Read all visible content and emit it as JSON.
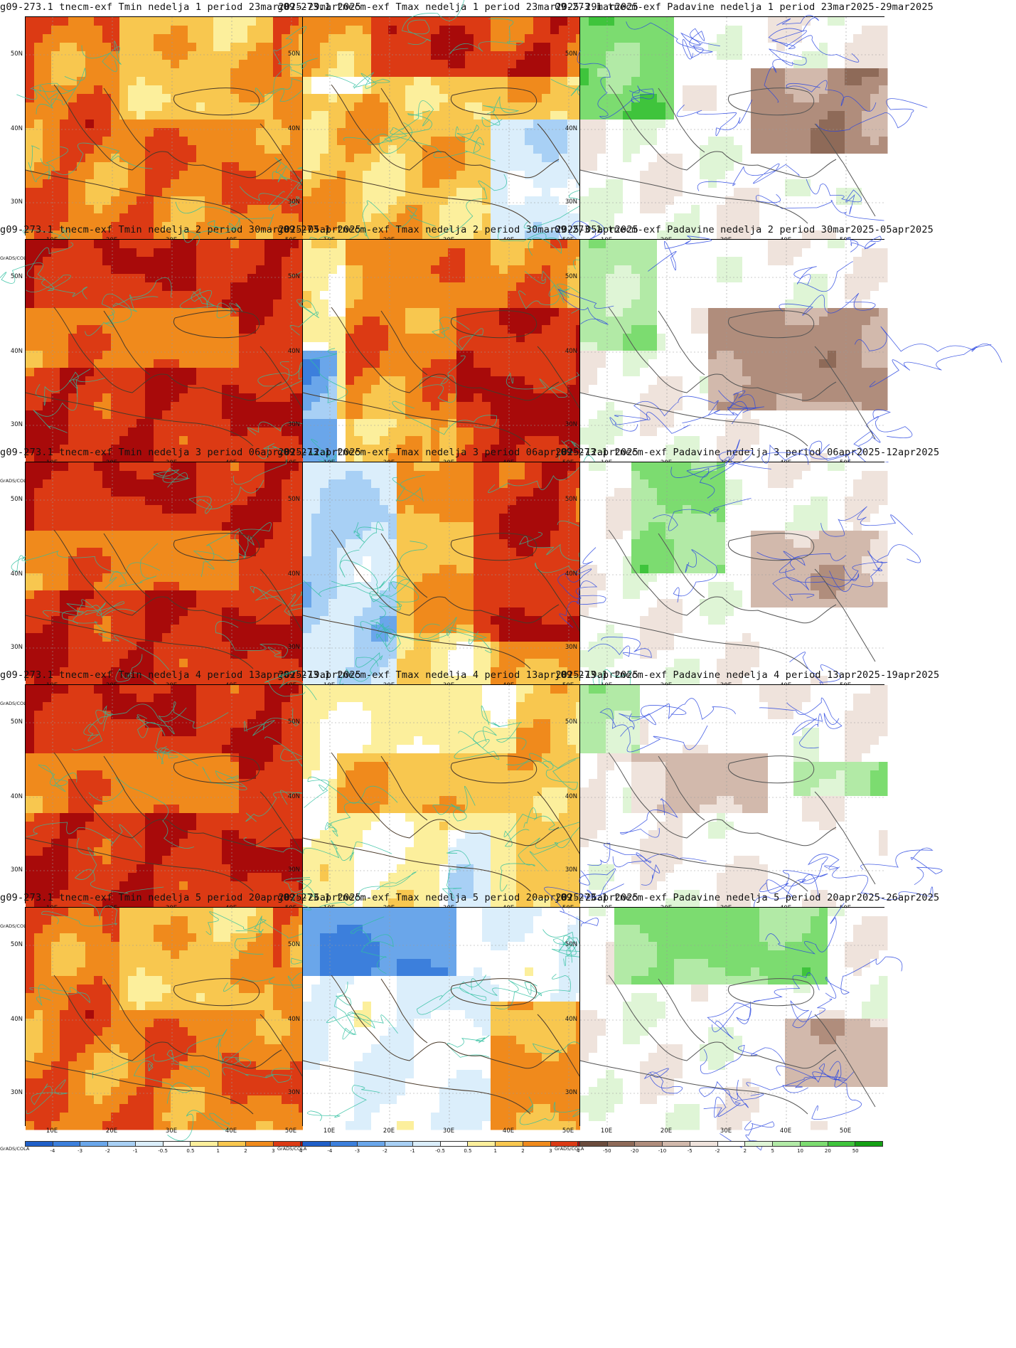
{
  "model_prefix": "g09-273.1 tnecm-exf",
  "lat_labels": [
    "50N",
    "40N",
    "30N"
  ],
  "lon_labels": [
    "10E",
    "20E",
    "30E",
    "40E",
    "50E"
  ],
  "grads_label": "GrADS/COLA",
  "temp_scale": {
    "labels": [
      "-4",
      "-3",
      "-2",
      "-1",
      "-0.5",
      "0.5",
      "1",
      "2",
      "3",
      "4"
    ],
    "colors": [
      "#1f5fc8",
      "#3c7fdc",
      "#6aa6ea",
      "#a8d0f5",
      "#dbeefb",
      "#ffffff",
      "#fcef9c",
      "#f8c74f",
      "#f08a1c",
      "#dc3a14",
      "#a80a0a"
    ]
  },
  "precip_scale": {
    "labels": [
      "-50",
      "-20",
      "-10",
      "-5",
      "-2",
      "2",
      "5",
      "10",
      "20",
      "50"
    ],
    "colors": [
      "#6b4b3c",
      "#8e6a58",
      "#b08d7c",
      "#d2b9ac",
      "#efe3dc",
      "#ffffff",
      "#dff5d6",
      "#b2eaa6",
      "#7cdc70",
      "#3fc43c",
      "#14a014"
    ]
  },
  "rows": [
    {
      "tmin": "g09-273.1 tnecm-exf Tmin nedelja 1 period 23mar2025-29mar2025",
      "tmax": "g09-273.1 tnecm-exf Tmax nedelja 1 period 23mar2025-29mar2025",
      "prec": "09-273.1 tnecm-exf Padavine nedelja 1 period 23mar2025-29mar2025"
    },
    {
      "tmin": "g09-273.1 tnecm-exf Tmin nedelja 2 period 30mar2025-05apr2025",
      "tmax": "g09-273.1 tnecm-exf Tmax nedelja 2 period 30mar2025-05apr2025",
      "prec": "09-273.1 tnecm-exf Padavine nedelja 2 period 30mar2025-05apr2025"
    },
    {
      "tmin": "g09-273.1 tnecm-exf Tmin nedelja 3 period 06apr2025-12apr2025",
      "tmax": "g09-273.1 tnecm-exf Tmax nedelja 3 period 06apr2025-12apr2025",
      "prec": "j09-273.1 tnecm-exf Padavine nedelja 3 period 06apr2025-12apr2025"
    },
    {
      "tmin": "g09-273.1 tnecm-exf Tmin nedelja 4 period 13apr2025-19apr2025",
      "tmax": "g09-273.1 tnecm-exf Tmax nedelja 4 period 13apr2025-19apr2025",
      "prec": "j09-273.1 tnecm-exf Padavine nedelja 4 period 13apr2025-19apr2025"
    },
    {
      "tmin": "g09-273.1 tnecm-exf Tmin nedelja 5 period 20apr2025-26apr2025",
      "tmax": "g09-273.1 tnecm-exf Tmax nedelja 5 period 20apr2025-26apr2025",
      "prec": "j09-273.1 tnecm-exf Padavine nedelja 5 period 20apr2025-26apr2025"
    }
  ],
  "fields": [
    [
      "warm",
      "mixwarm",
      "dry"
    ],
    [
      "hot",
      "hotwest",
      "dry2"
    ],
    [
      "hot",
      "coldwest",
      "mixwet"
    ],
    [
      "hot",
      "mild",
      "mixdry"
    ],
    [
      "warm",
      "cold",
      "wetnorth"
    ]
  ]
}
